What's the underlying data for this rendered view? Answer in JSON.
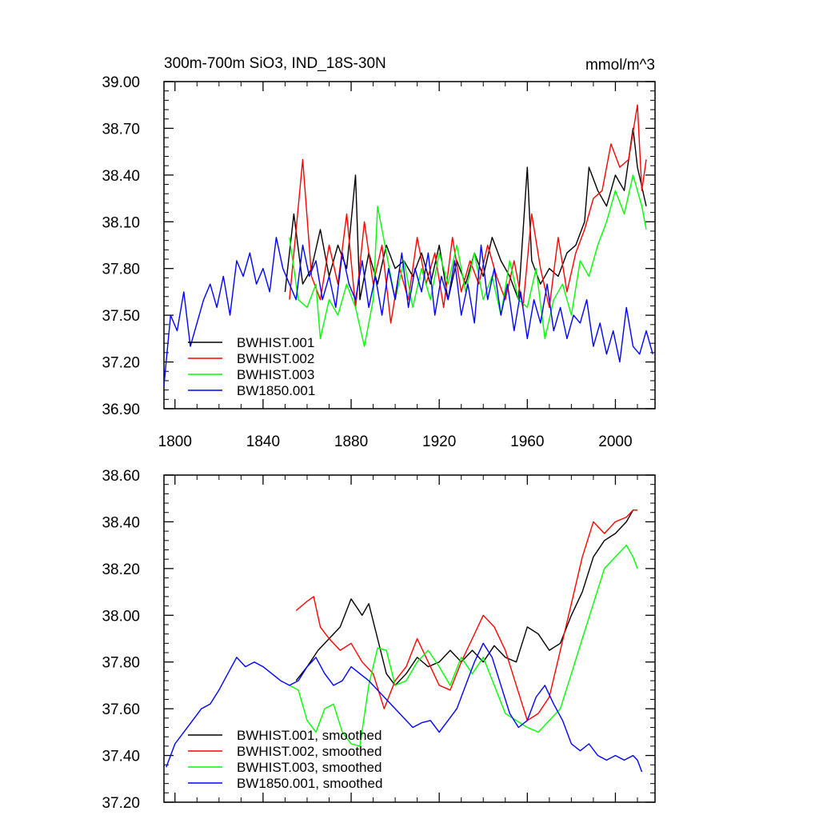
{
  "chart_data": [
    {
      "type": "line",
      "title": "300m-700m SiO3, IND_18S-30N",
      "units": "mmol/m^3",
      "xlim": [
        1795,
        2018
      ],
      "ylim": [
        36.9,
        39.0
      ],
      "xticks": [
        "1800",
        "1840",
        "1880",
        "1920",
        "1960",
        "2000"
      ],
      "yticks": [
        "36.90",
        "37.20",
        "37.50",
        "37.80",
        "38.10",
        "38.40",
        "38.70",
        "39.00"
      ],
      "legend": "bottom-left",
      "series": [
        {
          "name": "BWHIST.001",
          "color": "#000000",
          "x": [
            1850,
            1854,
            1858,
            1862,
            1866,
            1870,
            1874,
            1878,
            1882,
            1884,
            1888,
            1892,
            1896,
            1900,
            1904,
            1908,
            1912,
            1916,
            1920,
            1924,
            1928,
            1932,
            1936,
            1940,
            1944,
            1948,
            1952,
            1956,
            1960,
            1962,
            1966,
            1970,
            1974,
            1978,
            1982,
            1986,
            1988,
            1992,
            1996,
            2000,
            2004,
            2008,
            2010,
            2014
          ],
          "y": [
            37.65,
            38.15,
            37.7,
            37.8,
            38.05,
            37.75,
            37.95,
            37.8,
            38.4,
            37.6,
            37.9,
            37.7,
            37.95,
            37.8,
            37.85,
            37.75,
            37.9,
            37.7,
            37.95,
            37.6,
            37.85,
            37.7,
            37.9,
            37.75,
            38.0,
            37.85,
            37.75,
            37.6,
            38.45,
            37.85,
            37.7,
            37.8,
            37.75,
            37.9,
            37.95,
            38.1,
            38.45,
            38.3,
            38.2,
            38.4,
            38.3,
            38.7,
            38.45,
            38.2
          ]
        },
        {
          "name": "BWHIST.002",
          "color": "#ff0000",
          "x": [
            1852,
            1856,
            1858,
            1862,
            1866,
            1870,
            1874,
            1878,
            1882,
            1886,
            1890,
            1894,
            1898,
            1902,
            1906,
            1910,
            1914,
            1918,
            1922,
            1926,
            1930,
            1934,
            1938,
            1942,
            1946,
            1950,
            1954,
            1958,
            1962,
            1966,
            1970,
            1974,
            1978,
            1982,
            1986,
            1990,
            1994,
            1998,
            2002,
            2006,
            2010,
            2012,
            2014
          ],
          "y": [
            37.6,
            38.2,
            38.5,
            37.75,
            37.6,
            37.95,
            37.7,
            38.15,
            37.55,
            38.1,
            37.7,
            37.95,
            37.45,
            37.8,
            37.6,
            38.0,
            37.7,
            37.9,
            37.55,
            38.0,
            37.65,
            37.85,
            37.7,
            37.95,
            37.75,
            37.6,
            37.85,
            37.55,
            38.15,
            37.8,
            37.55,
            38.0,
            37.65,
            37.9,
            38.05,
            38.25,
            38.3,
            38.6,
            38.45,
            38.5,
            38.85,
            38.3,
            38.5
          ]
        },
        {
          "name": "BWHIST.003",
          "color": "#00ff00",
          "x": [
            1852,
            1856,
            1860,
            1864,
            1866,
            1870,
            1874,
            1878,
            1882,
            1886,
            1890,
            1892,
            1896,
            1900,
            1904,
            1908,
            1912,
            1916,
            1920,
            1924,
            1928,
            1932,
            1936,
            1940,
            1944,
            1948,
            1952,
            1956,
            1960,
            1964,
            1968,
            1972,
            1976,
            1980,
            1984,
            1988,
            1992,
            1996,
            2000,
            2004,
            2008,
            2012,
            2014
          ],
          "y": [
            38.0,
            37.6,
            37.55,
            37.7,
            37.35,
            37.6,
            37.5,
            37.7,
            37.55,
            37.3,
            37.6,
            38.2,
            37.9,
            37.6,
            37.85,
            37.55,
            37.8,
            37.6,
            37.9,
            37.7,
            37.95,
            37.65,
            37.9,
            37.6,
            37.75,
            37.5,
            37.85,
            37.6,
            37.55,
            37.8,
            37.35,
            37.6,
            37.7,
            37.5,
            37.85,
            37.75,
            37.95,
            38.1,
            38.3,
            38.15,
            38.4,
            38.2,
            38.05
          ]
        },
        {
          "name": "BW1850.001",
          "color": "#0000ff",
          "x": [
            1795,
            1798,
            1801,
            1804,
            1807,
            1810,
            1813,
            1816,
            1819,
            1822,
            1825,
            1828,
            1831,
            1834,
            1837,
            1840,
            1843,
            1846,
            1849,
            1852,
            1855,
            1858,
            1861,
            1864,
            1867,
            1870,
            1873,
            1876,
            1879,
            1882,
            1885,
            1888,
            1891,
            1894,
            1897,
            1900,
            1903,
            1906,
            1909,
            1912,
            1915,
            1918,
            1921,
            1924,
            1927,
            1930,
            1933,
            1936,
            1939,
            1942,
            1945,
            1948,
            1951,
            1954,
            1957,
            1960,
            1963,
            1966,
            1969,
            1972,
            1975,
            1978,
            1981,
            1984,
            1987,
            1990,
            1993,
            1996,
            1999,
            2002,
            2005,
            2008,
            2011,
            2014,
            2017
          ],
          "y": [
            37.05,
            37.5,
            37.4,
            37.65,
            37.3,
            37.45,
            37.6,
            37.7,
            37.55,
            37.75,
            37.5,
            37.85,
            37.75,
            37.9,
            37.7,
            37.8,
            37.65,
            38.0,
            37.8,
            37.7,
            37.6,
            37.95,
            37.75,
            37.85,
            37.6,
            37.75,
            37.55,
            37.9,
            37.7,
            37.6,
            37.85,
            37.55,
            37.75,
            37.5,
            37.8,
            37.6,
            37.9,
            37.55,
            37.8,
            37.65,
            37.9,
            37.5,
            37.75,
            37.6,
            37.85,
            37.5,
            37.7,
            37.45,
            37.95,
            37.6,
            37.8,
            37.5,
            37.7,
            37.4,
            37.65,
            37.35,
            37.6,
            37.45,
            37.7,
            37.4,
            37.55,
            37.35,
            37.5,
            37.45,
            37.6,
            37.3,
            37.45,
            37.25,
            37.4,
            37.2,
            37.55,
            37.3,
            37.25,
            37.4,
            37.25
          ]
        }
      ]
    },
    {
      "type": "line",
      "title": "",
      "xlim": [
        1795,
        2018
      ],
      "ylim": [
        37.2,
        38.6
      ],
      "yticks": [
        "37.20",
        "37.40",
        "37.60",
        "37.80",
        "38.00",
        "38.20",
        "38.40",
        "38.60"
      ],
      "legend": "bottom-left",
      "series": [
        {
          "name": "BWHIST.001, smoothed",
          "color": "#000000",
          "x": [
            1855,
            1860,
            1865,
            1870,
            1875,
            1880,
            1885,
            1888,
            1892,
            1896,
            1900,
            1905,
            1910,
            1915,
            1920,
            1925,
            1930,
            1935,
            1940,
            1945,
            1950,
            1955,
            1960,
            1965,
            1970,
            1975,
            1980,
            1985,
            1990,
            1995,
            2000,
            2005,
            2008,
            2010
          ],
          "y": [
            37.72,
            37.78,
            37.85,
            37.9,
            37.95,
            38.07,
            38.0,
            38.05,
            37.9,
            37.75,
            37.7,
            37.75,
            37.82,
            37.78,
            37.8,
            37.85,
            37.8,
            37.85,
            37.8,
            37.87,
            37.82,
            37.8,
            37.95,
            37.92,
            37.85,
            37.88,
            38.0,
            38.1,
            38.25,
            38.32,
            38.35,
            38.4,
            38.45,
            38.45
          ]
        },
        {
          "name": "BWHIST.002, smoothed",
          "color": "#ff0000",
          "x": [
            1855,
            1860,
            1863,
            1866,
            1870,
            1875,
            1880,
            1885,
            1890,
            1895,
            1900,
            1905,
            1910,
            1915,
            1920,
            1925,
            1930,
            1935,
            1940,
            1945,
            1950,
            1955,
            1960,
            1965,
            1970,
            1975,
            1980,
            1985,
            1990,
            1995,
            2000,
            2005,
            2008,
            2010
          ],
          "y": [
            38.02,
            38.06,
            38.08,
            37.95,
            37.9,
            37.85,
            37.88,
            37.8,
            37.75,
            37.6,
            37.72,
            37.78,
            37.9,
            37.8,
            37.7,
            37.68,
            37.8,
            37.9,
            38.0,
            37.95,
            37.85,
            37.7,
            37.55,
            37.58,
            37.65,
            37.85,
            38.05,
            38.25,
            38.4,
            38.35,
            38.4,
            38.42,
            38.45,
            38.45
          ]
        },
        {
          "name": "BWHIST.003, smoothed",
          "color": "#00ff00",
          "x": [
            1852,
            1856,
            1860,
            1864,
            1868,
            1872,
            1876,
            1880,
            1884,
            1888,
            1892,
            1896,
            1900,
            1905,
            1910,
            1915,
            1920,
            1925,
            1930,
            1935,
            1940,
            1945,
            1950,
            1955,
            1960,
            1965,
            1970,
            1975,
            1980,
            1985,
            1990,
            1995,
            2000,
            2005,
            2008,
            2010
          ],
          "y": [
            37.7,
            37.68,
            37.55,
            37.5,
            37.6,
            37.62,
            37.5,
            37.45,
            37.44,
            37.7,
            37.86,
            37.85,
            37.7,
            37.72,
            37.8,
            37.85,
            37.78,
            37.7,
            37.82,
            37.75,
            37.82,
            37.7,
            37.58,
            37.55,
            37.52,
            37.5,
            37.55,
            37.6,
            37.75,
            37.9,
            38.05,
            38.2,
            38.25,
            38.3,
            38.25,
            38.2
          ]
        },
        {
          "name": "BW1850.001, smoothed",
          "color": "#0000ff",
          "x": [
            1796,
            1800,
            1804,
            1808,
            1812,
            1816,
            1820,
            1824,
            1828,
            1832,
            1836,
            1840,
            1844,
            1848,
            1852,
            1856,
            1860,
            1864,
            1868,
            1872,
            1876,
            1880,
            1884,
            1888,
            1892,
            1896,
            1900,
            1904,
            1908,
            1912,
            1916,
            1920,
            1924,
            1928,
            1932,
            1936,
            1940,
            1944,
            1948,
            1952,
            1956,
            1960,
            1964,
            1968,
            1972,
            1976,
            1980,
            1984,
            1988,
            1992,
            1996,
            2000,
            2004,
            2008,
            2010,
            2012
          ],
          "y": [
            37.35,
            37.45,
            37.5,
            37.55,
            37.6,
            37.62,
            37.68,
            37.75,
            37.82,
            37.78,
            37.8,
            37.78,
            37.75,
            37.72,
            37.7,
            37.72,
            37.78,
            37.82,
            37.75,
            37.7,
            37.72,
            37.78,
            37.75,
            37.72,
            37.68,
            37.64,
            37.6,
            37.56,
            37.52,
            37.54,
            37.55,
            37.5,
            37.55,
            37.6,
            37.7,
            37.8,
            37.88,
            37.82,
            37.7,
            37.58,
            37.52,
            37.55,
            37.65,
            37.7,
            37.62,
            37.55,
            37.45,
            37.42,
            37.45,
            37.4,
            37.38,
            37.4,
            37.38,
            37.4,
            37.38,
            37.33
          ]
        }
      ]
    }
  ]
}
